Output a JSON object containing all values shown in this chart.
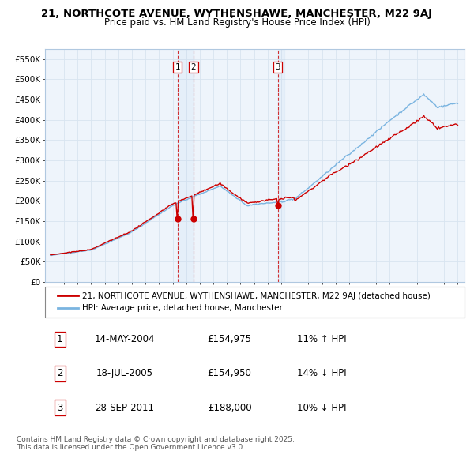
{
  "title_line1": "21, NORTHCOTE AVENUE, WYTHENSHAWE, MANCHESTER, M22 9AJ",
  "title_line2": "Price paid vs. HM Land Registry's House Price Index (HPI)",
  "ylim": [
    0,
    575000
  ],
  "yticks": [
    0,
    50000,
    100000,
    150000,
    200000,
    250000,
    300000,
    350000,
    400000,
    450000,
    500000,
    550000
  ],
  "ytick_labels": [
    "£0",
    "£50K",
    "£100K",
    "£150K",
    "£200K",
    "£250K",
    "£300K",
    "£350K",
    "£400K",
    "£450K",
    "£500K",
    "£550K"
  ],
  "xlim_start": 1994.6,
  "xlim_end": 2025.5,
  "hpi_color": "#7ab4e0",
  "price_color": "#cc0000",
  "vline_color": "#cc0000",
  "grid_color": "#d8e4f0",
  "plot_bg_color": "#eef4fb",
  "legend_label_price": "21, NORTHCOTE AVENUE, WYTHENSHAWE, MANCHESTER, M22 9AJ (detached house)",
  "legend_label_hpi": "HPI: Average price, detached house, Manchester",
  "transactions": [
    {
      "num": 1,
      "date": "14-MAY-2004",
      "price": "£154,975",
      "pct_dir": "11% ↑ HPI",
      "vline_x": 2004.37,
      "actual_price": 154975
    },
    {
      "num": 2,
      "date": "18-JUL-2005",
      "price": "£154,950",
      "pct_dir": "14% ↓ HPI",
      "vline_x": 2005.54,
      "actual_price": 154950
    },
    {
      "num": 3,
      "date": "28-SEP-2011",
      "price": "£188,000",
      "pct_dir": "10% ↓ HPI",
      "vline_x": 2011.74,
      "actual_price": 188000
    }
  ],
  "footer_line1": "Contains HM Land Registry data © Crown copyright and database right 2025.",
  "footer_line2": "This data is licensed under the Open Government Licence v3.0."
}
